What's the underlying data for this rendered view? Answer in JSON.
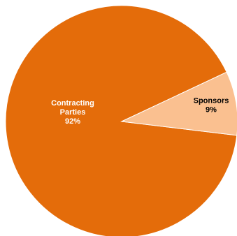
{
  "chart_data": {
    "type": "pie",
    "slices": [
      {
        "name": "Contracting Parties",
        "label_lines": [
          "Contracting",
          "Parties"
        ],
        "pct_label": "92%",
        "value": 92,
        "color": "#E46C0A",
        "text_color": "#FFFFFF"
      },
      {
        "name": "Sponsors",
        "label_lines": [
          "Sponsors"
        ],
        "pct_label": "9%",
        "value": 9,
        "color": "#FAC090",
        "text_color": "#000000"
      }
    ],
    "legend": "none"
  }
}
